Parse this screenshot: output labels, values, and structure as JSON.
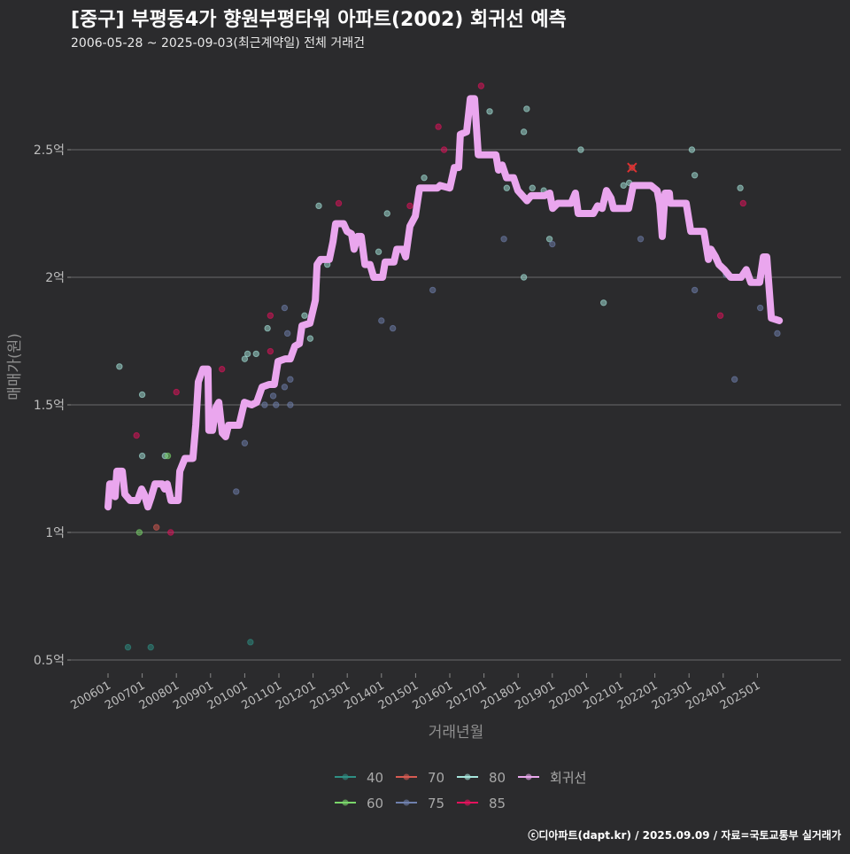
{
  "title": "[중구] 부평동4가 향원부평타워 아파트(2002) 회귀선 예측",
  "subtitle": "2006-05-28 ~ 2025-09-03(최근계약일) 전체 거래건",
  "caption": "ⓒ디아파트(dapt.kr) / 2025.09.09 / 자료=국토교통부 실거래가",
  "chart_data": {
    "type": "scatter",
    "title": "[중구] 부평동4가 향원부평타워 아파트(2002) 회귀선 예측",
    "xlabel": "거래년월",
    "ylabel": "매매가(원)",
    "x_unit": "months since 2006-01",
    "y_unit": "억",
    "ylim": [
      0.45,
      2.82
    ],
    "xlim": [
      -13,
      260
    ],
    "grid": true,
    "legend_position": "bottom",
    "y_ticks": [
      {
        "v": 0.5,
        "label": "0.5억"
      },
      {
        "v": 1,
        "label": "1억"
      },
      {
        "v": 1.5,
        "label": "1.5억"
      },
      {
        "v": 2,
        "label": "2억"
      },
      {
        "v": 2.5,
        "label": "2.5억"
      }
    ],
    "x_ticks": [
      {
        "m": 0,
        "label": "200601"
      },
      {
        "m": 12,
        "label": "200701"
      },
      {
        "m": 24,
        "label": "200801"
      },
      {
        "m": 36,
        "label": "200901"
      },
      {
        "m": 48,
        "label": "201001"
      },
      {
        "m": 60,
        "label": "201101"
      },
      {
        "m": 72,
        "label": "201201"
      },
      {
        "m": 84,
        "label": "201301"
      },
      {
        "m": 96,
        "label": "201401"
      },
      {
        "m": 108,
        "label": "201501"
      },
      {
        "m": 120,
        "label": "201601"
      },
      {
        "m": 132,
        "label": "201701"
      },
      {
        "m": 144,
        "label": "201801"
      },
      {
        "m": 156,
        "label": "201901"
      },
      {
        "m": 168,
        "label": "202001"
      },
      {
        "m": 180,
        "label": "202101"
      },
      {
        "m": 192,
        "label": "202201"
      },
      {
        "m": 204,
        "label": "202301"
      },
      {
        "m": 216,
        "label": "202401"
      },
      {
        "m": 228,
        "label": "202501"
      }
    ],
    "legend": [
      {
        "key": "40",
        "label": "40",
        "color": "#2e8f84"
      },
      {
        "key": "70",
        "label": "70",
        "color": "#d65a52"
      },
      {
        "key": "80",
        "label": "80",
        "color": "#a6e6dc"
      },
      {
        "key": "reg",
        "label": "회귀선",
        "color": "#e9a8ec"
      },
      {
        "key": "60",
        "label": "60",
        "color": "#7ad66a"
      },
      {
        "key": "75",
        "label": "75",
        "color": "#6f80ad"
      },
      {
        "key": "85",
        "label": "85",
        "color": "#e3125c"
      }
    ],
    "points": [
      [
        4,
        1.65,
        "80"
      ],
      [
        7,
        0.55,
        "40"
      ],
      [
        15,
        0.55,
        "40"
      ],
      [
        10,
        1.38,
        "85"
      ],
      [
        11,
        1.0,
        "60"
      ],
      [
        12,
        1.3,
        "80"
      ],
      [
        12,
        1.54,
        "80"
      ],
      [
        17,
        1.02,
        "70"
      ],
      [
        20,
        1.3,
        "80"
      ],
      [
        21,
        1.3,
        "60"
      ],
      [
        22,
        1.0,
        "85"
      ],
      [
        24,
        1.55,
        "85"
      ],
      [
        40,
        1.64,
        "85"
      ],
      [
        45,
        1.16,
        "75"
      ],
      [
        48,
        1.35,
        "75"
      ],
      [
        48,
        1.68,
        "80"
      ],
      [
        49,
        1.7,
        "80"
      ],
      [
        50,
        0.57,
        "40"
      ],
      [
        52,
        1.7,
        "80"
      ],
      [
        55,
        1.5,
        "75"
      ],
      [
        56,
        1.8,
        "80"
      ],
      [
        57,
        1.85,
        "85"
      ],
      [
        57,
        1.71,
        "85"
      ],
      [
        58,
        1.535,
        "75"
      ],
      [
        59,
        1.5,
        "75"
      ],
      [
        62,
        1.88,
        "75"
      ],
      [
        62,
        1.57,
        "75"
      ],
      [
        63,
        1.78,
        "75"
      ],
      [
        64,
        1.6,
        "75"
      ],
      [
        64,
        1.5,
        "75"
      ],
      [
        69,
        1.85,
        "80"
      ],
      [
        71,
        1.76,
        "80"
      ],
      [
        74,
        2.28,
        "80"
      ],
      [
        77,
        2.05,
        "80"
      ],
      [
        81,
        2.29,
        "85"
      ],
      [
        95,
        2.1,
        "80"
      ],
      [
        96,
        1.83,
        "75"
      ],
      [
        98,
        2.25,
        "80"
      ],
      [
        100,
        1.8,
        "75"
      ],
      [
        106,
        2.28,
        "85"
      ],
      [
        111,
        2.39,
        "80"
      ],
      [
        114,
        1.95,
        "75"
      ],
      [
        116,
        2.59,
        "85"
      ],
      [
        118,
        2.5,
        "85"
      ],
      [
        131,
        2.75,
        "85"
      ],
      [
        134,
        2.65,
        "80"
      ],
      [
        139,
        2.15,
        "75"
      ],
      [
        140,
        2.35,
        "80"
      ],
      [
        146,
        2.57,
        "80"
      ],
      [
        146,
        2.0,
        "80"
      ],
      [
        147,
        2.66,
        "80"
      ],
      [
        149,
        2.35,
        "80"
      ],
      [
        153,
        2.34,
        "80"
      ],
      [
        155,
        2.15,
        "80"
      ],
      [
        156,
        2.13,
        "75"
      ],
      [
        166,
        2.5,
        "80"
      ],
      [
        174,
        1.9,
        "80"
      ],
      [
        181,
        2.36,
        "80"
      ],
      [
        183,
        2.37,
        "80"
      ],
      [
        184,
        2.43,
        "70"
      ],
      [
        187,
        2.15,
        "75"
      ],
      [
        205,
        2.5,
        "80"
      ],
      [
        206,
        2.4,
        "80"
      ],
      [
        206,
        1.95,
        "75"
      ],
      [
        215,
        1.85,
        "85"
      ],
      [
        217,
        2.01,
        "75"
      ],
      [
        220,
        1.6,
        "75"
      ],
      [
        222,
        2.35,
        "80"
      ],
      [
        223,
        2.29,
        "85"
      ],
      [
        229,
        1.88,
        "75"
      ],
      [
        235,
        1.78,
        "75"
      ]
    ],
    "highlight_point": [
      184,
      2.43
    ],
    "regression": [
      [
        0,
        1.1
      ],
      [
        0.6,
        1.19
      ],
      [
        1.9,
        1.19
      ],
      [
        2.5,
        1.14
      ],
      [
        3.1,
        1.24
      ],
      [
        5,
        1.24
      ],
      [
        5.9,
        1.15
      ],
      [
        7.8,
        1.125
      ],
      [
        10.3,
        1.125
      ],
      [
        11.8,
        1.17
      ],
      [
        12.7,
        1.15
      ],
      [
        14,
        1.1
      ],
      [
        15.2,
        1.14
      ],
      [
        16.5,
        1.19
      ],
      [
        19,
        1.19
      ],
      [
        19.9,
        1.17
      ],
      [
        20.8,
        1.19
      ],
      [
        22.1,
        1.125
      ],
      [
        24.6,
        1.125
      ],
      [
        25.2,
        1.24
      ],
      [
        27,
        1.29
      ],
      [
        29.8,
        1.29
      ],
      [
        30.8,
        1.42
      ],
      [
        31.7,
        1.59
      ],
      [
        33.3,
        1.64
      ],
      [
        35.1,
        1.64
      ],
      [
        35.4,
        1.4
      ],
      [
        36.7,
        1.4
      ],
      [
        37.9,
        1.49
      ],
      [
        38.9,
        1.51
      ],
      [
        40.1,
        1.39
      ],
      [
        41.3,
        1.375
      ],
      [
        42.3,
        1.42
      ],
      [
        46,
        1.42
      ],
      [
        47.9,
        1.51
      ],
      [
        50.4,
        1.5
      ],
      [
        52.2,
        1.51
      ],
      [
        54.1,
        1.57
      ],
      [
        56.6,
        1.58
      ],
      [
        58.4,
        1.58
      ],
      [
        59.7,
        1.67
      ],
      [
        62.2,
        1.68
      ],
      [
        64,
        1.68
      ],
      [
        65.6,
        1.73
      ],
      [
        67.2,
        1.74
      ],
      [
        68.1,
        1.81
      ],
      [
        70.9,
        1.82
      ],
      [
        72.8,
        1.91
      ],
      [
        73.4,
        2.05
      ],
      [
        74.6,
        2.07
      ],
      [
        77.7,
        2.07
      ],
      [
        79,
        2.14
      ],
      [
        79.9,
        2.21
      ],
      [
        82.7,
        2.21
      ],
      [
        83.9,
        2.18
      ],
      [
        85.5,
        2.17
      ],
      [
        86.4,
        2.11
      ],
      [
        87.7,
        2.16
      ],
      [
        88.9,
        2.16
      ],
      [
        90.2,
        2.05
      ],
      [
        92,
        2.05
      ],
      [
        93.3,
        2.0
      ],
      [
        96.4,
        2.0
      ],
      [
        97.3,
        2.06
      ],
      [
        100.4,
        2.06
      ],
      [
        101.4,
        2.11
      ],
      [
        103.5,
        2.11
      ],
      [
        104.5,
        2.08
      ],
      [
        106,
        2.2
      ],
      [
        107.9,
        2.24
      ],
      [
        109.4,
        2.35
      ],
      [
        115.7,
        2.35
      ],
      [
        116.6,
        2.36
      ],
      [
        120,
        2.35
      ],
      [
        121.6,
        2.43
      ],
      [
        123.1,
        2.43
      ],
      [
        123.7,
        2.56
      ],
      [
        125.9,
        2.57
      ],
      [
        127.2,
        2.7
      ],
      [
        128.7,
        2.7
      ],
      [
        130,
        2.48
      ],
      [
        136.2,
        2.48
      ],
      [
        137.1,
        2.42
      ],
      [
        138.4,
        2.44
      ],
      [
        139.9,
        2.39
      ],
      [
        142.4,
        2.39
      ],
      [
        143.9,
        2.34
      ],
      [
        145.5,
        2.32
      ],
      [
        147.1,
        2.3
      ],
      [
        148.6,
        2.32
      ],
      [
        153.3,
        2.32
      ],
      [
        155.1,
        2.33
      ],
      [
        156.1,
        2.27
      ],
      [
        157.9,
        2.29
      ],
      [
        162.6,
        2.29
      ],
      [
        164.1,
        2.33
      ],
      [
        165.1,
        2.25
      ],
      [
        170.4,
        2.25
      ],
      [
        171.9,
        2.28
      ],
      [
        173.5,
        2.27
      ],
      [
        175,
        2.34
      ],
      [
        176.6,
        2.31
      ],
      [
        177.5,
        2.27
      ],
      [
        182.8,
        2.27
      ],
      [
        184.4,
        2.36
      ],
      [
        190.6,
        2.36
      ],
      [
        192.8,
        2.34
      ],
      [
        193.7,
        2.29
      ],
      [
        194.6,
        2.16
      ],
      [
        195.6,
        2.33
      ],
      [
        197.1,
        2.33
      ],
      [
        197.4,
        2.29
      ],
      [
        203,
        2.29
      ],
      [
        204.6,
        2.18
      ],
      [
        209.2,
        2.18
      ],
      [
        210.8,
        2.07
      ],
      [
        211.7,
        2.11
      ],
      [
        213.3,
        2.08
      ],
      [
        214.5,
        2.05
      ],
      [
        216.4,
        2.03
      ],
      [
        218.6,
        2.0
      ],
      [
        222.3,
        2.0
      ],
      [
        224.1,
        2.03
      ],
      [
        225.7,
        1.98
      ],
      [
        228.8,
        1.98
      ],
      [
        230.1,
        2.08
      ],
      [
        231.3,
        2.08
      ],
      [
        232.9,
        1.84
      ],
      [
        235.7,
        1.83
      ]
    ]
  }
}
